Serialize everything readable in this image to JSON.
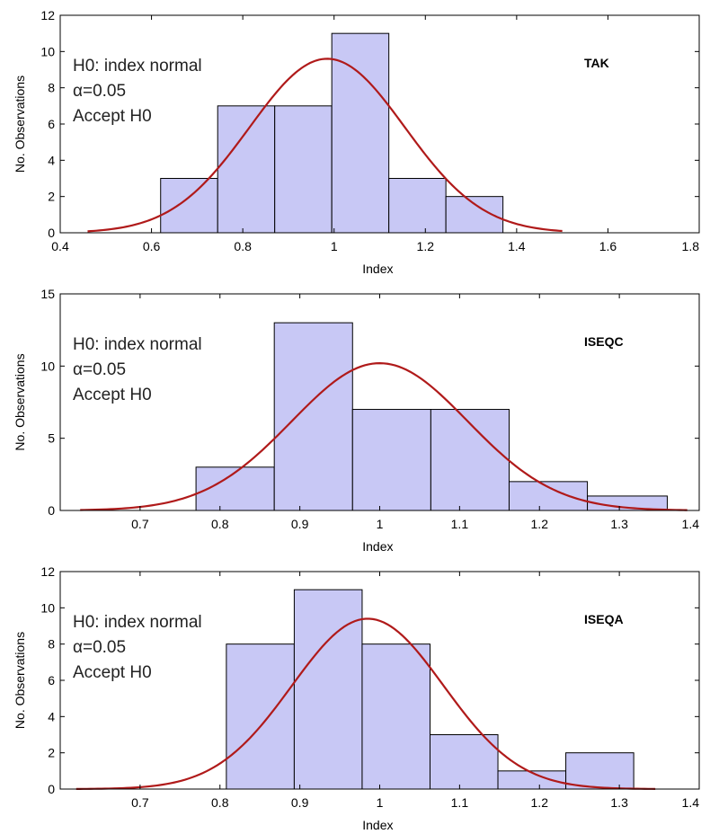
{
  "chart_data": [
    {
      "type": "bar",
      "tag": "TAK",
      "xlabel": "Index",
      "ylabel": "No. Observations",
      "xlim": [
        0.4,
        1.8
      ],
      "ylim": [
        0,
        12
      ],
      "xticks": [
        "0.4",
        "0.6",
        "0.8",
        "1",
        "1.2",
        "1.4",
        "1.6",
        "1.8"
      ],
      "xtick_values": [
        0.4,
        0.6,
        0.8,
        1.0,
        1.2,
        1.4,
        1.6,
        1.8
      ],
      "yticks": [
        "0",
        "2",
        "4",
        "6",
        "8",
        "10",
        "12"
      ],
      "ytick_values": [
        0,
        2,
        4,
        6,
        8,
        10,
        12
      ],
      "bin_edges": [
        0.62,
        0.745,
        0.87,
        0.995,
        1.12,
        1.245,
        1.37
      ],
      "values": [
        3,
        7,
        7,
        11,
        3,
        2
      ],
      "normal_fit": {
        "mean": 0.985,
        "peak": 9.6,
        "sd": 0.17,
        "x_range": [
          0.46,
          1.5
        ]
      },
      "annotations": [
        "H0: index normal",
        "α=0.05",
        "Accept H0"
      ],
      "grid": false
    },
    {
      "type": "bar",
      "tag": "ISEQC",
      "xlabel": "Index",
      "ylabel": "No. Observations",
      "xlim": [
        0.6,
        1.4
      ],
      "ylim": [
        0,
        15
      ],
      "xticks": [
        "0.7",
        "0.8",
        "0.9",
        "1",
        "1.1",
        "1.2",
        "1.3",
        "1.4"
      ],
      "xtick_values": [
        0.7,
        0.8,
        0.9,
        1.0,
        1.1,
        1.2,
        1.3,
        1.4
      ],
      "yticks": [
        "0",
        "5",
        "10",
        "15"
      ],
      "ytick_values": [
        0,
        5,
        10,
        15
      ],
      "bin_edges": [
        0.77,
        0.868,
        0.966,
        1.064,
        1.162,
        1.26,
        1.36
      ],
      "values": [
        3,
        13,
        7,
        7,
        2,
        1
      ],
      "normal_fit": {
        "mean": 1.0,
        "peak": 10.2,
        "sd": 0.11,
        "x_range": [
          0.625,
          1.385
        ]
      },
      "annotations": [
        "H0: index normal",
        "α=0.05",
        "Accept H0"
      ],
      "grid": false
    },
    {
      "type": "bar",
      "tag": "ISEQA",
      "xlabel": "Index",
      "ylabel": "No. Observations",
      "xlim": [
        0.6,
        1.4
      ],
      "ylim": [
        0,
        12
      ],
      "xticks": [
        "0.7",
        "0.8",
        "0.9",
        "1",
        "1.1",
        "1.2",
        "1.3",
        "1.4"
      ],
      "xtick_values": [
        0.7,
        0.8,
        0.9,
        1.0,
        1.1,
        1.2,
        1.3,
        1.4
      ],
      "yticks": [
        "0",
        "2",
        "4",
        "6",
        "8",
        "10",
        "12"
      ],
      "ytick_values": [
        0,
        2,
        4,
        6,
        8,
        10,
        12
      ],
      "bin_edges": [
        0.808,
        0.893,
        0.978,
        1.063,
        1.148,
        1.233,
        1.318
      ],
      "values": [
        8,
        11,
        8,
        3,
        1,
        2
      ],
      "normal_fit": {
        "mean": 0.985,
        "peak": 9.4,
        "sd": 0.095,
        "x_range": [
          0.62,
          1.345
        ]
      },
      "annotations": [
        "H0: index normal",
        "α=0.05",
        "Accept H0"
      ],
      "grid": false
    }
  ]
}
